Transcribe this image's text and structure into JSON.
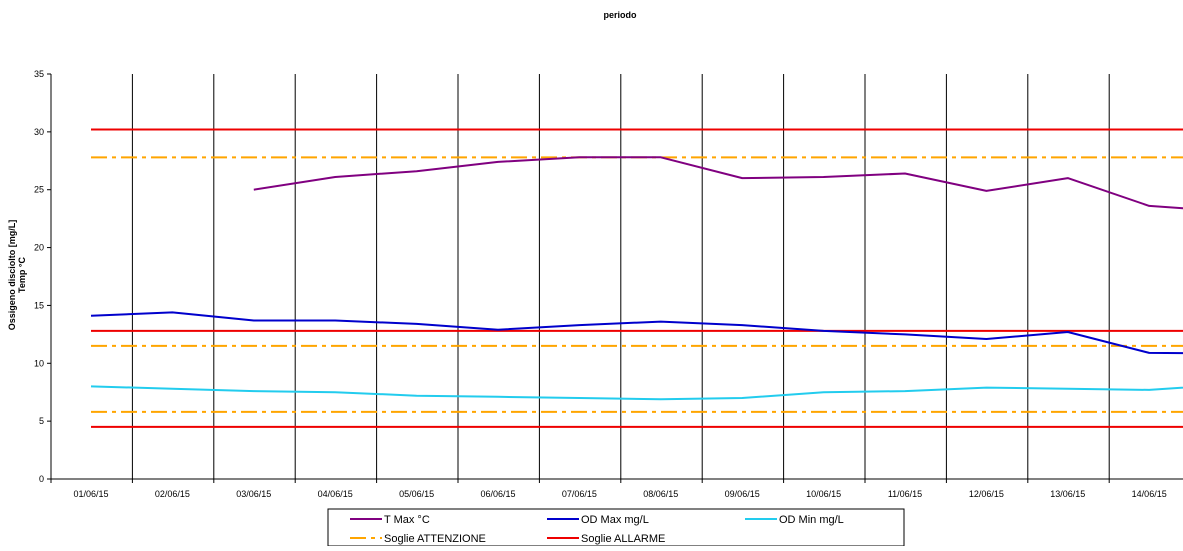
{
  "chart_data": {
    "type": "line",
    "title": "periodo",
    "ylabel": "Ossigeno disciolto [mg/L]",
    "ylabel2": "Temp °C",
    "ylim": [
      0,
      35
    ],
    "yticks": [
      0,
      5,
      10,
      15,
      20,
      25,
      30,
      35
    ],
    "categories": [
      "01/06/15",
      "02/06/15",
      "03/06/15",
      "04/06/15",
      "05/06/15",
      "06/06/15",
      "07/06/15",
      "08/06/15",
      "09/06/15",
      "10/06/15",
      "11/06/15",
      "12/06/15",
      "13/06/15",
      "14/06/15"
    ],
    "x_extent": [
      0,
      13.82
    ],
    "grid": "vertical",
    "legend_position": "bottom",
    "series": [
      {
        "name": "T Max °C",
        "color": "#800080",
        "style": "solid",
        "points": [
          [
            2,
            25.0
          ],
          [
            3,
            26.1
          ],
          [
            4,
            26.6
          ],
          [
            5,
            27.4
          ],
          [
            6,
            27.8
          ],
          [
            7,
            27.8
          ],
          [
            8,
            26.0
          ],
          [
            9,
            26.1
          ],
          [
            10,
            26.4
          ],
          [
            11,
            24.9
          ],
          [
            12,
            26.0
          ],
          [
            13,
            23.6
          ],
          [
            13.82,
            23.2
          ]
        ]
      },
      {
        "name": "OD Max mg/L",
        "color": "#0000cc",
        "style": "solid",
        "points": [
          [
            0,
            14.1
          ],
          [
            1,
            14.4
          ],
          [
            2,
            13.7
          ],
          [
            3,
            13.7
          ],
          [
            4,
            13.4
          ],
          [
            5,
            12.9
          ],
          [
            6,
            13.3
          ],
          [
            7,
            13.6
          ],
          [
            8,
            13.3
          ],
          [
            9,
            12.8
          ],
          [
            10,
            12.5
          ],
          [
            11,
            12.1
          ],
          [
            12,
            12.7
          ],
          [
            13,
            10.9
          ],
          [
            13.82,
            10.85
          ]
        ]
      },
      {
        "name": "OD  Min mg/L",
        "color": "#22ccee",
        "style": "solid",
        "points": [
          [
            0,
            8.0
          ],
          [
            1,
            7.8
          ],
          [
            2,
            7.6
          ],
          [
            3,
            7.5
          ],
          [
            4,
            7.2
          ],
          [
            5,
            7.1
          ],
          [
            6,
            7.0
          ],
          [
            7,
            6.9
          ],
          [
            8,
            7.0
          ],
          [
            9,
            7.5
          ],
          [
            10,
            7.6
          ],
          [
            11,
            7.9
          ],
          [
            12,
            7.8
          ],
          [
            13,
            7.7
          ],
          [
            13.82,
            8.1
          ]
        ]
      }
    ],
    "thresholds": [
      {
        "name": "Soglie ATTENZIONE",
        "color": "#ffa500",
        "style": "dashdot",
        "values": [
          27.8,
          11.5,
          5.8
        ]
      },
      {
        "name": "Soglie ALLARME",
        "color": "#ee0000",
        "style": "solid",
        "values": [
          30.2,
          12.8,
          4.5
        ]
      }
    ]
  }
}
